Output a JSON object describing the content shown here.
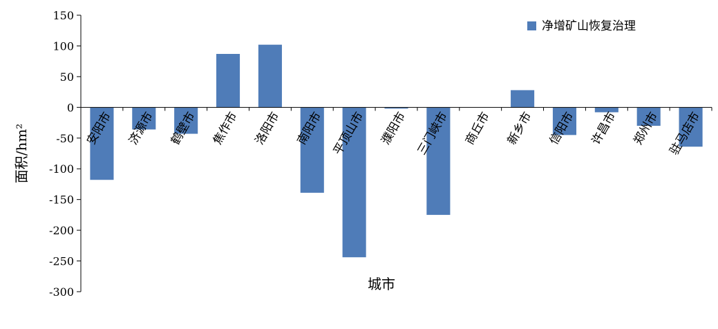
{
  "chart_data": {
    "type": "bar",
    "x_label": "城市",
    "y_label": "面积/hm²",
    "categories": [
      "安阳市",
      "济源市",
      "鹤壁市",
      "焦作市",
      "洛阳市",
      "南阳市",
      "平顶山市",
      "濮阳市",
      "三门峡市",
      "商丘市",
      "新乡市",
      "信阳市",
      "许昌市",
      "郑州市",
      "驻马店市"
    ],
    "series": [
      {
        "name": "净增矿山恢复治理",
        "color": "#4f7cb8",
        "values": [
          -118,
          -36,
          -43,
          87,
          102,
          -139,
          -244,
          -2,
          -175,
          0,
          28,
          -45,
          -8,
          -30,
          -64
        ]
      }
    ],
    "ylim": [
      -300,
      150
    ],
    "yticks": [
      -300,
      -250,
      -200,
      -150,
      -100,
      -50,
      0,
      50,
      100,
      150
    ],
    "grid": false,
    "legend": "top-right"
  }
}
